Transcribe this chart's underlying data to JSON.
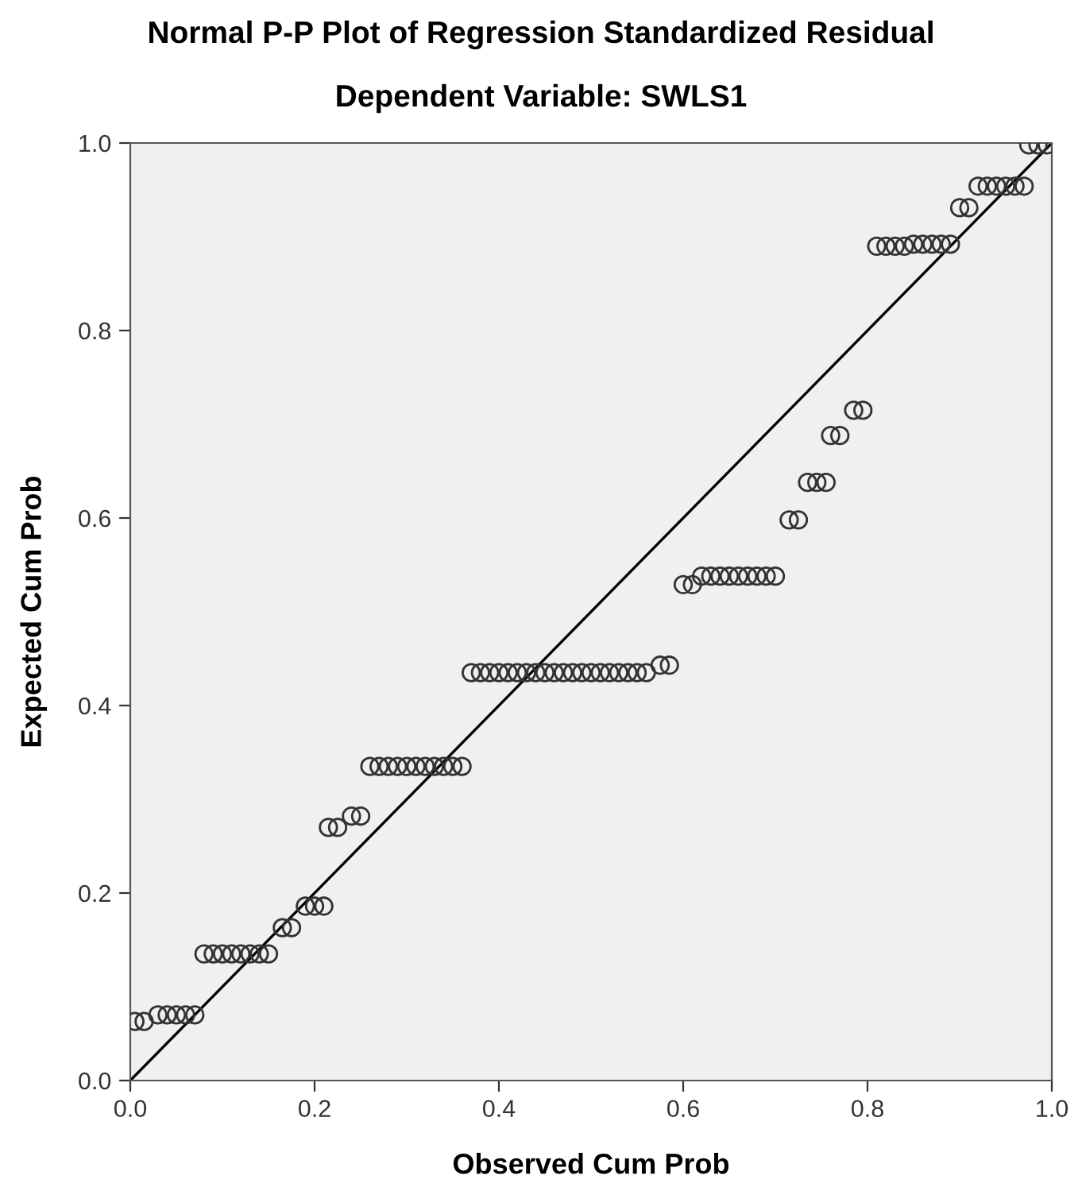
{
  "chart_data": {
    "type": "scatter",
    "title": "Normal P-P Plot of Regression Standardized Residual",
    "subtitle": "Dependent Variable: SWLS1",
    "xlabel": "Observed Cum Prob",
    "ylabel": "Expected Cum Prob",
    "xlim": [
      0,
      1
    ],
    "ylim": [
      0,
      1
    ],
    "xticks": [
      {
        "value": 0,
        "label": "0.0"
      },
      {
        "value": 0.2,
        "label": "0.2"
      },
      {
        "value": 0.4,
        "label": "0.4"
      },
      {
        "value": 0.6,
        "label": "0.6"
      },
      {
        "value": 0.8,
        "label": "0.8"
      },
      {
        "value": 1,
        "label": "1.0"
      }
    ],
    "yticks": [
      {
        "value": 0,
        "label": "0.0"
      },
      {
        "value": 0.2,
        "label": "0.2"
      },
      {
        "value": 0.4,
        "label": "0.4"
      },
      {
        "value": 0.6,
        "label": "0.6"
      },
      {
        "value": 0.8,
        "label": "0.8"
      },
      {
        "value": 1,
        "label": "1.0"
      }
    ],
    "grid": false,
    "legend": false,
    "marker": "circle",
    "series": [
      {
        "color": "#333333",
        "x": [
          0.005,
          0.015,
          0.03,
          0.04,
          0.05,
          0.06,
          0.07,
          0.08,
          0.09,
          0.1,
          0.11,
          0.12,
          0.13,
          0.14,
          0.15,
          0.165,
          0.175,
          0.19,
          0.2,
          0.21,
          0.215,
          0.225,
          0.24,
          0.25,
          0.26,
          0.27,
          0.28,
          0.29,
          0.3,
          0.31,
          0.32,
          0.33,
          0.34,
          0.35,
          0.36,
          0.37,
          0.38,
          0.39,
          0.4,
          0.41,
          0.42,
          0.43,
          0.44,
          0.45,
          0.46,
          0.47,
          0.48,
          0.49,
          0.5,
          0.51,
          0.52,
          0.53,
          0.54,
          0.55,
          0.56,
          0.575,
          0.585,
          0.6,
          0.61,
          0.62,
          0.63,
          0.64,
          0.65,
          0.66,
          0.67,
          0.68,
          0.69,
          0.7,
          0.715,
          0.725,
          0.735,
          0.745,
          0.755,
          0.76,
          0.77,
          0.785,
          0.795,
          0.81,
          0.82,
          0.83,
          0.84,
          0.85,
          0.86,
          0.87,
          0.88,
          0.89,
          0.9,
          0.91,
          0.92,
          0.93,
          0.94,
          0.95,
          0.96,
          0.97,
          0.975,
          0.985,
          0.995
        ],
        "values": [
          0.063,
          0.063,
          0.07,
          0.07,
          0.07,
          0.07,
          0.07,
          0.135,
          0.135,
          0.135,
          0.135,
          0.135,
          0.135,
          0.135,
          0.135,
          0.163,
          0.163,
          0.186,
          0.186,
          0.186,
          0.27,
          0.27,
          0.282,
          0.282,
          0.335,
          0.335,
          0.335,
          0.335,
          0.335,
          0.335,
          0.335,
          0.335,
          0.335,
          0.335,
          0.335,
          0.435,
          0.435,
          0.435,
          0.435,
          0.435,
          0.435,
          0.435,
          0.435,
          0.435,
          0.435,
          0.435,
          0.435,
          0.435,
          0.435,
          0.435,
          0.435,
          0.435,
          0.435,
          0.435,
          0.435,
          0.443,
          0.443,
          0.529,
          0.529,
          0.538,
          0.538,
          0.538,
          0.538,
          0.538,
          0.538,
          0.538,
          0.538,
          0.538,
          0.598,
          0.598,
          0.638,
          0.638,
          0.638,
          0.688,
          0.688,
          0.715,
          0.715,
          0.89,
          0.89,
          0.89,
          0.89,
          0.892,
          0.892,
          0.892,
          0.892,
          0.892,
          0.931,
          0.931,
          0.954,
          0.954,
          0.954,
          0.954,
          0.954,
          0.954,
          0.998,
          0.998,
          0.998
        ]
      },
      {
        "type": "line",
        "color": "#000000",
        "marker": "none",
        "line_style": "solid",
        "x": [
          0,
          1
        ],
        "values": [
          0,
          1
        ]
      }
    ]
  }
}
